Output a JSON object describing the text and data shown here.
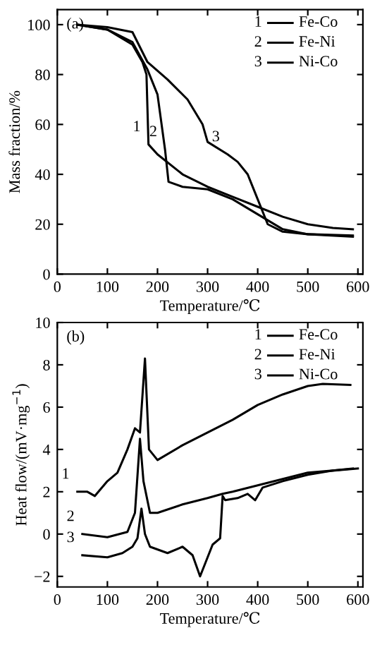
{
  "chart_data": [
    {
      "type": "line",
      "xlabel": "Temperature/℃",
      "ylabel": "Mass fraction/%",
      "xlim": [
        0,
        610
      ],
      "ylim": [
        0,
        106
      ],
      "xticks": [
        0,
        100,
        200,
        300,
        400,
        500,
        600
      ],
      "yticks": [
        0,
        20,
        40,
        60,
        80,
        100
      ],
      "grid": false,
      "legend": "top right",
      "marker": "none",
      "line_style": "solid",
      "annotations": [
        "(a)",
        {
          "text": "1",
          "x": 182,
          "y": 52
        },
        {
          "text": "2",
          "x": 215,
          "y": 50
        },
        {
          "text": "3",
          "x": 340,
          "y": 48
        }
      ],
      "series": [
        {
          "name": "Fe-Co",
          "color": "#000000",
          "x": [
            40,
            100,
            150,
            170,
            178,
            182,
            200,
            250,
            300,
            350,
            400,
            450,
            500,
            550,
            590
          ],
          "values": [
            100,
            98,
            92,
            85,
            80,
            52,
            48,
            40,
            35,
            31,
            27,
            23,
            20,
            18.5,
            18
          ]
        },
        {
          "name": "Fe-Ni",
          "color": "#000000",
          "x": [
            40,
            100,
            150,
            180,
            200,
            215,
            222,
            250,
            300,
            350,
            400,
            450,
            500,
            590
          ],
          "values": [
            100,
            98,
            93,
            82,
            72,
            50,
            37,
            35,
            34,
            30,
            24,
            18,
            16,
            15
          ]
        },
        {
          "name": "Ni-Co",
          "color": "#000000",
          "x": [
            40,
            100,
            150,
            180,
            220,
            260,
            290,
            300,
            340,
            360,
            380,
            400,
            420,
            450,
            500,
            590
          ],
          "values": [
            100,
            99,
            97,
            85,
            78,
            70,
            60,
            53,
            48,
            45,
            40,
            30,
            20,
            17,
            16,
            15.5
          ]
        }
      ]
    },
    {
      "type": "line",
      "xlabel": "Temperature/℃",
      "ylabel": "Heat flow/(mV·mg$^{−1}$)",
      "xlim": [
        0,
        610
      ],
      "ylim": [
        -2.5,
        10
      ],
      "xticks": [
        0,
        100,
        200,
        300,
        400,
        500,
        600
      ],
      "yticks": [
        {
          "value": -2,
          "label": "−2"
        },
        0,
        2,
        4,
        6,
        8,
        10
      ],
      "grid": false,
      "legend": "top right",
      "marker": "none",
      "line_style": "solid",
      "annotations": [
        "(b)",
        {
          "text": "1",
          "x": 40,
          "y": 2.0
        },
        {
          "text": "2",
          "x": 50,
          "y": 0
        },
        {
          "text": "3",
          "x": 50,
          "y": -1
        }
      ],
      "series": [
        {
          "name": "Fe-Co",
          "color": "#000000",
          "x": [
            40,
            60,
            75,
            100,
            120,
            140,
            155,
            165,
            175,
            183,
            200,
            250,
            300,
            350,
            400,
            450,
            500,
            530,
            585
          ],
          "values": [
            2.0,
            2.0,
            1.8,
            2.5,
            2.9,
            4.0,
            5.0,
            4.8,
            8.3,
            4.0,
            3.5,
            4.2,
            4.8,
            5.4,
            6.1,
            6.6,
            7.0,
            7.1,
            7.05
          ]
        },
        {
          "name": "Fe-Ni",
          "color": "#000000",
          "x": [
            50,
            100,
            140,
            155,
            165,
            172,
            185,
            200,
            250,
            300,
            330,
            350,
            400,
            450,
            500,
            550,
            600
          ],
          "values": [
            0,
            -0.15,
            0.1,
            1.0,
            4.5,
            2.5,
            1.0,
            1.0,
            1.4,
            1.7,
            1.9,
            2.0,
            2.3,
            2.6,
            2.9,
            3.0,
            3.1
          ]
        },
        {
          "name": "Ni-Co",
          "color": "#000000",
          "x": [
            50,
            100,
            130,
            150,
            160,
            168,
            175,
            185,
            220,
            250,
            270,
            285,
            295,
            310,
            325,
            330,
            335,
            360,
            380,
            395,
            410,
            450,
            500,
            550,
            590
          ],
          "values": [
            -1,
            -1.1,
            -0.9,
            -0.6,
            -0.2,
            1.2,
            0.0,
            -0.6,
            -0.9,
            -0.6,
            -1.0,
            -2.0,
            -1.4,
            -0.5,
            -0.2,
            1.8,
            1.6,
            1.7,
            1.9,
            1.6,
            2.2,
            2.5,
            2.8,
            3.0,
            3.1
          ]
        }
      ]
    }
  ]
}
